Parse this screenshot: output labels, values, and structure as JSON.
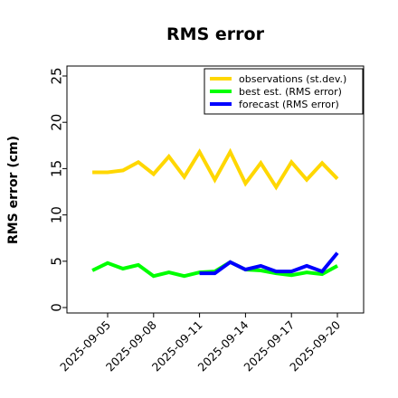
{
  "chart_data": {
    "type": "line",
    "title": "RMS error",
    "xlabel": "",
    "ylabel": "RMS error (cm)",
    "ylim": [
      0,
      26
    ],
    "yticks": [
      0,
      5,
      10,
      15,
      20,
      25
    ],
    "ytick_labels": [
      "0",
      "5",
      "10",
      "15",
      "20",
      "25"
    ],
    "x": [
      "2025-09-04",
      "2025-09-05",
      "2025-09-06",
      "2025-09-07",
      "2025-09-08",
      "2025-09-09",
      "2025-09-10",
      "2025-09-11",
      "2025-09-12",
      "2025-09-13",
      "2025-09-14",
      "2025-09-15",
      "2025-09-16",
      "2025-09-17",
      "2025-09-18",
      "2025-09-19",
      "2025-09-20"
    ],
    "xlim": [
      "2025-09-03",
      "2025-09-21"
    ],
    "xticks": [
      "2025-09-05",
      "2025-09-08",
      "2025-09-11",
      "2025-09-14",
      "2025-09-17",
      "2025-09-20"
    ],
    "xtick_labels": [
      "2025-09-05",
      "2025-09-08",
      "2025-09-11",
      "2025-09-14",
      "2025-09-17",
      "2025-09-20"
    ],
    "highlighted_xtick": "2025-09-11",
    "highlight_color": "#228b22",
    "grid": false,
    "legend_position": "upper right",
    "series": [
      {
        "name": "observations (st.dev.)",
        "color": "#ffd700",
        "values": [
          14.6,
          14.6,
          14.8,
          15.7,
          14.4,
          16.3,
          14.1,
          16.8,
          13.8,
          16.8,
          13.4,
          15.6,
          13.0,
          15.7,
          13.8,
          15.6,
          13.9
        ]
      },
      {
        "name": "best est. (RMS error)",
        "color": "#00ff00",
        "values": [
          4.0,
          4.8,
          4.2,
          4.6,
          3.4,
          3.8,
          3.4,
          3.8,
          3.9,
          4.9,
          4.1,
          4.0,
          3.7,
          3.5,
          3.8,
          3.6,
          4.5
        ]
      },
      {
        "name": "forecast (RMS error)",
        "color": "#0000ff",
        "values": [
          null,
          null,
          null,
          null,
          null,
          null,
          null,
          3.7,
          3.7,
          4.9,
          4.1,
          4.5,
          3.9,
          3.9,
          4.5,
          3.9,
          5.9
        ]
      }
    ]
  }
}
